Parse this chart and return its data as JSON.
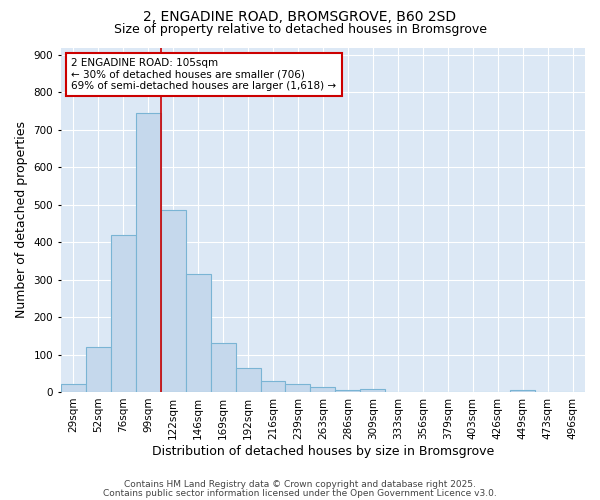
{
  "title1": "2, ENGADINE ROAD, BROMSGROVE, B60 2SD",
  "title2": "Size of property relative to detached houses in Bromsgrove",
  "xlabel": "Distribution of detached houses by size in Bromsgrove",
  "ylabel": "Number of detached properties",
  "categories": [
    "29sqm",
    "52sqm",
    "76sqm",
    "99sqm",
    "122sqm",
    "146sqm",
    "169sqm",
    "192sqm",
    "216sqm",
    "239sqm",
    "263sqm",
    "286sqm",
    "309sqm",
    "333sqm",
    "356sqm",
    "379sqm",
    "403sqm",
    "426sqm",
    "449sqm",
    "473sqm",
    "496sqm"
  ],
  "values": [
    20,
    120,
    420,
    745,
    485,
    315,
    130,
    65,
    30,
    22,
    12,
    5,
    8,
    0,
    0,
    0,
    0,
    0,
    5,
    0,
    0
  ],
  "bar_color": "#c5d8ec",
  "bar_edge_color": "#7ab4d4",
  "red_line_index": 3,
  "annotation_text": "2 ENGADINE ROAD: 105sqm\n← 30% of detached houses are smaller (706)\n69% of semi-detached houses are larger (1,618) →",
  "annotation_box_color": "#ffffff",
  "annotation_box_edge": "#cc0000",
  "ylim": [
    0,
    920
  ],
  "yticks": [
    0,
    100,
    200,
    300,
    400,
    500,
    600,
    700,
    800,
    900
  ],
  "footer1": "Contains HM Land Registry data © Crown copyright and database right 2025.",
  "footer2": "Contains public sector information licensed under the Open Government Licence v3.0.",
  "fig_bg_color": "#ffffff",
  "plot_bg_color": "#dce8f5",
  "title_fontsize": 10,
  "subtitle_fontsize": 9,
  "axis_label_fontsize": 9,
  "tick_fontsize": 7.5,
  "footer_fontsize": 6.5
}
